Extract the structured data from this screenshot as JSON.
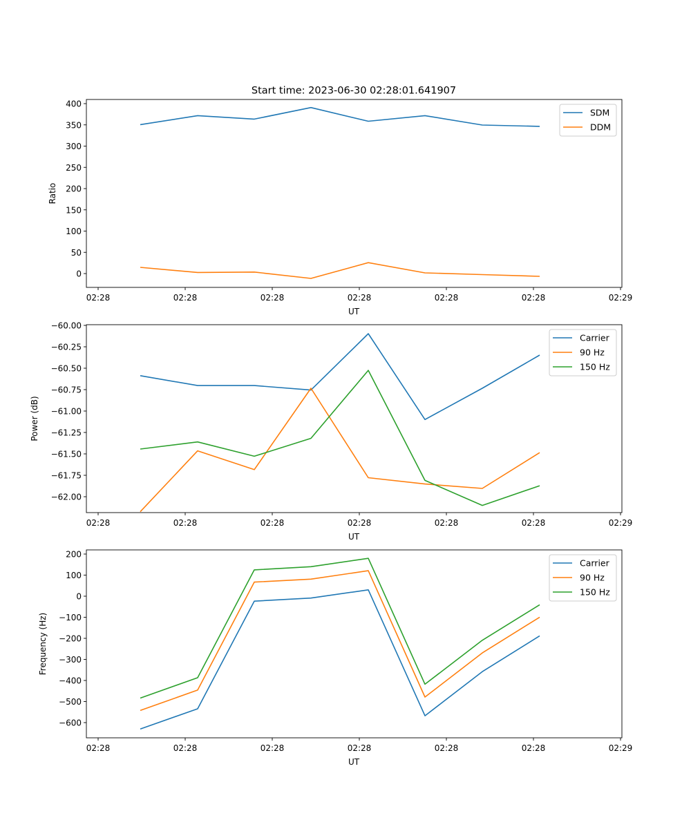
{
  "figure": {
    "title": "Start time: 2023-06-30 02:28:01.641907"
  },
  "colors": {
    "c0": "#1f77b4",
    "c1": "#ff7f0e",
    "c2": "#2ca02c"
  },
  "chart_data": [
    {
      "type": "line",
      "xlabel": "UT",
      "ylabel": "Ratio",
      "xticks": [
        "02:28",
        "02:28",
        "02:28",
        "02:28",
        "02:28",
        "02:28",
        "02:29"
      ],
      "yticks": [
        "400",
        "350",
        "300",
        "250",
        "200",
        "150",
        "100",
        "50",
        "0"
      ],
      "ylim": [
        -33,
        408
      ],
      "legend": "top-right",
      "series": [
        {
          "name": "SDM",
          "color": "#1f77b4",
          "values": [
            349,
            370,
            362,
            389,
            357,
            370,
            348,
            345
          ]
        },
        {
          "name": "DDM",
          "color": "#ff7f0e",
          "values": [
            14,
            2,
            3,
            -12,
            25,
            1,
            -3,
            -7
          ]
        }
      ]
    },
    {
      "type": "line",
      "xlabel": "UT",
      "ylabel": "Power (dB)",
      "xticks": [
        "02:28",
        "02:28",
        "02:28",
        "02:28",
        "02:28",
        "02:28",
        "02:29"
      ],
      "yticks": [
        "−60.00",
        "−60.25",
        "−60.50",
        "−60.75",
        "−61.00",
        "−61.25",
        "−61.50",
        "−61.75",
        "−62.00"
      ],
      "ylim": [
        -62.09,
        -59.99
      ],
      "legend": "top-right",
      "series": [
        {
          "name": "Carrier",
          "color": "#1f77b4",
          "values": [
            -60.56,
            -60.67,
            -60.67,
            -60.72,
            -60.09,
            -61.05,
            -60.7,
            -60.33
          ]
        },
        {
          "name": "90 Hz",
          "color": "#ff7f0e",
          "values": [
            -62.08,
            -61.4,
            -61.61,
            -60.7,
            -61.7,
            -61.77,
            -61.82,
            -61.42
          ]
        },
        {
          "name": "150 Hz",
          "color": "#2ca02c",
          "values": [
            -61.38,
            -61.3,
            -61.46,
            -61.26,
            -60.5,
            -61.73,
            -62.01,
            -61.79
          ]
        }
      ]
    },
    {
      "type": "line",
      "xlabel": "UT",
      "ylabel": "Frequency (Hz)",
      "xticks": [
        "02:28",
        "02:28",
        "02:28",
        "02:28",
        "02:28",
        "02:28",
        "02:29"
      ],
      "yticks": [
        "200",
        "100",
        "0",
        "−100",
        "−200",
        "−300",
        "−400",
        "−500",
        "−600"
      ],
      "ylim": [
        -675,
        219
      ],
      "legend": "top-right",
      "series": [
        {
          "name": "Carrier",
          "color": "#1f77b4",
          "values": [
            -633,
            -537,
            -25,
            -10,
            29,
            -570,
            -360,
            -190
          ]
        },
        {
          "name": "90 Hz",
          "color": "#ff7f0e",
          "values": [
            -545,
            -448,
            66,
            80,
            120,
            -481,
            -271,
            -101
          ]
        },
        {
          "name": "150 Hz",
          "color": "#2ca02c",
          "values": [
            -486,
            -389,
            124,
            139,
            179,
            -420,
            -211,
            -42
          ]
        }
      ]
    }
  ]
}
